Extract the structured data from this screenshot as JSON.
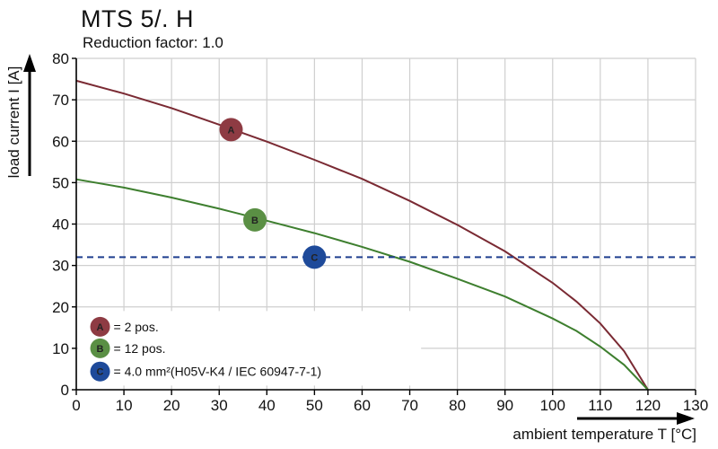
{
  "chart_data": {
    "type": "line",
    "title": "MTS 5/. H",
    "subtitle": "Reduction factor: 1.0",
    "xlabel": "ambient temperature T [°C]",
    "ylabel": "load current I [A]",
    "xlim": [
      0,
      130
    ],
    "ylim": [
      0,
      80
    ],
    "xticks": [
      "0",
      "10",
      "20",
      "30",
      "40",
      "50",
      "60",
      "70",
      "80",
      "90",
      "100",
      "110",
      "120",
      "130"
    ],
    "yticks": [
      "0",
      "10",
      "20",
      "30",
      "40",
      "50",
      "60",
      "70",
      "80"
    ],
    "grid": true,
    "series": [
      {
        "name": "A",
        "label": "= 2 pos.",
        "color": "#7a2a33",
        "marker_fill": "#8e3b43",
        "marker_at": [
          32.5,
          62.8
        ],
        "x": [
          0,
          10,
          20,
          30,
          40,
          50,
          60,
          70,
          80,
          90,
          100,
          105,
          110,
          115,
          120
        ],
        "y": [
          74.6,
          71.5,
          68.0,
          64.0,
          59.9,
          55.5,
          50.9,
          45.6,
          39.8,
          33.4,
          25.8,
          21.3,
          16.0,
          9.3,
          0
        ]
      },
      {
        "name": "B",
        "label": "= 12 pos.",
        "color": "#3e7f2f",
        "marker_fill": "#5a8f44",
        "marker_at": [
          37.5,
          41
        ],
        "x": [
          0,
          10,
          20,
          30,
          40,
          50,
          60,
          70,
          80,
          90,
          100,
          105,
          110,
          115,
          120
        ],
        "y": [
          50.8,
          48.8,
          46.4,
          43.7,
          40.8,
          37.8,
          34.5,
          30.9,
          26.8,
          22.5,
          17.2,
          14.2,
          10.4,
          6.0,
          0
        ]
      },
      {
        "name": "C",
        "label": "= 4.0 mm²(H05V-K4 / IEC 60947-7-1)",
        "color": "#1f3f8f",
        "marker_fill": "#1e4a9a",
        "marker_at": [
          50,
          32
        ],
        "style": "dashed",
        "x": [
          0,
          130
        ],
        "y": [
          32,
          32
        ]
      }
    ]
  }
}
